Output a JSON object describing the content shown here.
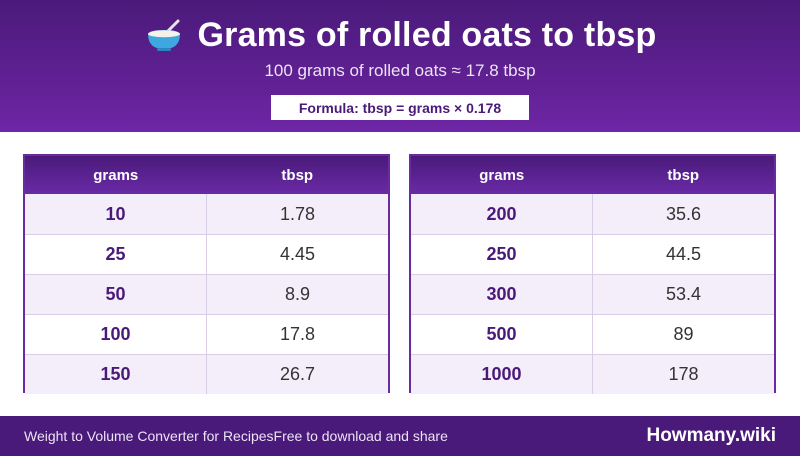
{
  "header": {
    "icon": "bowl-icon",
    "title": "Grams of rolled oats to tbsp",
    "subtitle": "100 grams of rolled oats ≈ 17.8 tbsp",
    "formula": "Formula: tbsp = grams × 0.178"
  },
  "tables": [
    {
      "col_grams": "grams",
      "col_tbsp": "tbsp",
      "rows": [
        {
          "grams": "10",
          "tbsp": "1.78"
        },
        {
          "grams": "25",
          "tbsp": "4.45"
        },
        {
          "grams": "50",
          "tbsp": "8.9"
        },
        {
          "grams": "100",
          "tbsp": "17.8"
        },
        {
          "grams": "150",
          "tbsp": "26.7"
        }
      ]
    },
    {
      "col_grams": "grams",
      "col_tbsp": "tbsp",
      "rows": [
        {
          "grams": "200",
          "tbsp": "35.6"
        },
        {
          "grams": "250",
          "tbsp": "44.5"
        },
        {
          "grams": "300",
          "tbsp": "53.4"
        },
        {
          "grams": "500",
          "tbsp": "89"
        },
        {
          "grams": "1000",
          "tbsp": "178"
        }
      ]
    }
  ],
  "footer": {
    "left_text": "Weight to Volume Converter for Recipes",
    "tagline": "Free to download and share",
    "brand": "Howmany.wiki"
  },
  "colors": {
    "primary": "#4a1a7a",
    "accent": "#6e26a6",
    "row_alt": "#f3eef9"
  }
}
